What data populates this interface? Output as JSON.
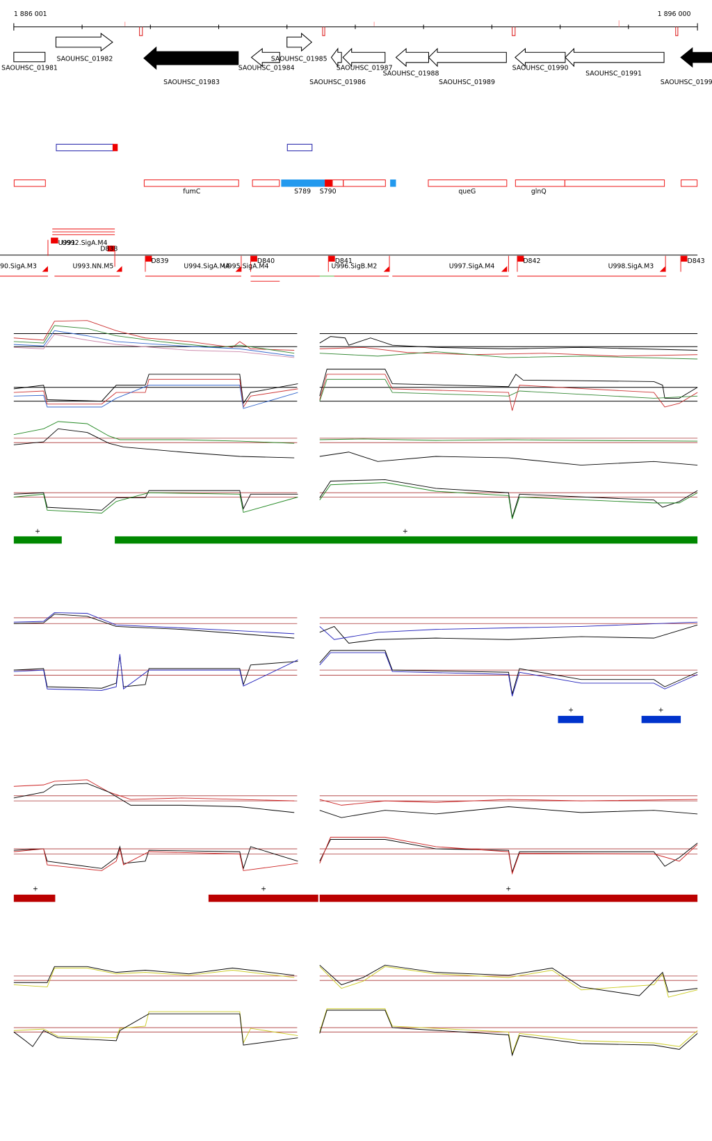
{
  "header": {
    "start": "1 886 001",
    "end": "1 896 000"
  },
  "genes": [
    {
      "label": "SAOUHSC_01981"
    },
    {
      "label": "SAOUHSC_01982"
    },
    {
      "label": "SAOUHSC_01983"
    },
    {
      "label": "SAOUHSC_01984"
    },
    {
      "label": "SAOUHSC_01985"
    },
    {
      "label": "SAOUHSC_01986"
    },
    {
      "label": "SAOUHSC_01987"
    },
    {
      "label": "SAOUHSC_01988"
    },
    {
      "label": "SAOUHSC_01989"
    },
    {
      "label": "SAOUHSC_01990"
    },
    {
      "label": "SAOUHSC_01991"
    },
    {
      "label": "SAOUHSC_0199"
    }
  ],
  "features": [
    {
      "label": "fumC"
    },
    {
      "label": "S789"
    },
    {
      "label": "S790"
    },
    {
      "label": "queG"
    },
    {
      "label": "glnQ"
    }
  ],
  "transcripts": [
    {
      "label": "U991"
    },
    {
      "label": "U992.SigA.M4"
    },
    {
      "label": "D838"
    },
    {
      "label": "90.SigA.M3"
    },
    {
      "label": "U993.NN.M5"
    },
    {
      "label": "D839"
    },
    {
      "label": "U994.SigA.M4"
    },
    {
      "label": "U995.SigA.M4"
    },
    {
      "label": "D840"
    },
    {
      "label": "D841"
    },
    {
      "label": "U996.SigB.M2"
    },
    {
      "label": "U997.SigA.M4"
    },
    {
      "label": "D842"
    },
    {
      "label": "U998.SigA.M3"
    },
    {
      "label": "D843"
    }
  ],
  "significance": {
    "green": [
      "+",
      "+"
    ],
    "blue": [
      "+",
      "+"
    ],
    "red": [
      "+",
      "+",
      "+"
    ]
  }
}
